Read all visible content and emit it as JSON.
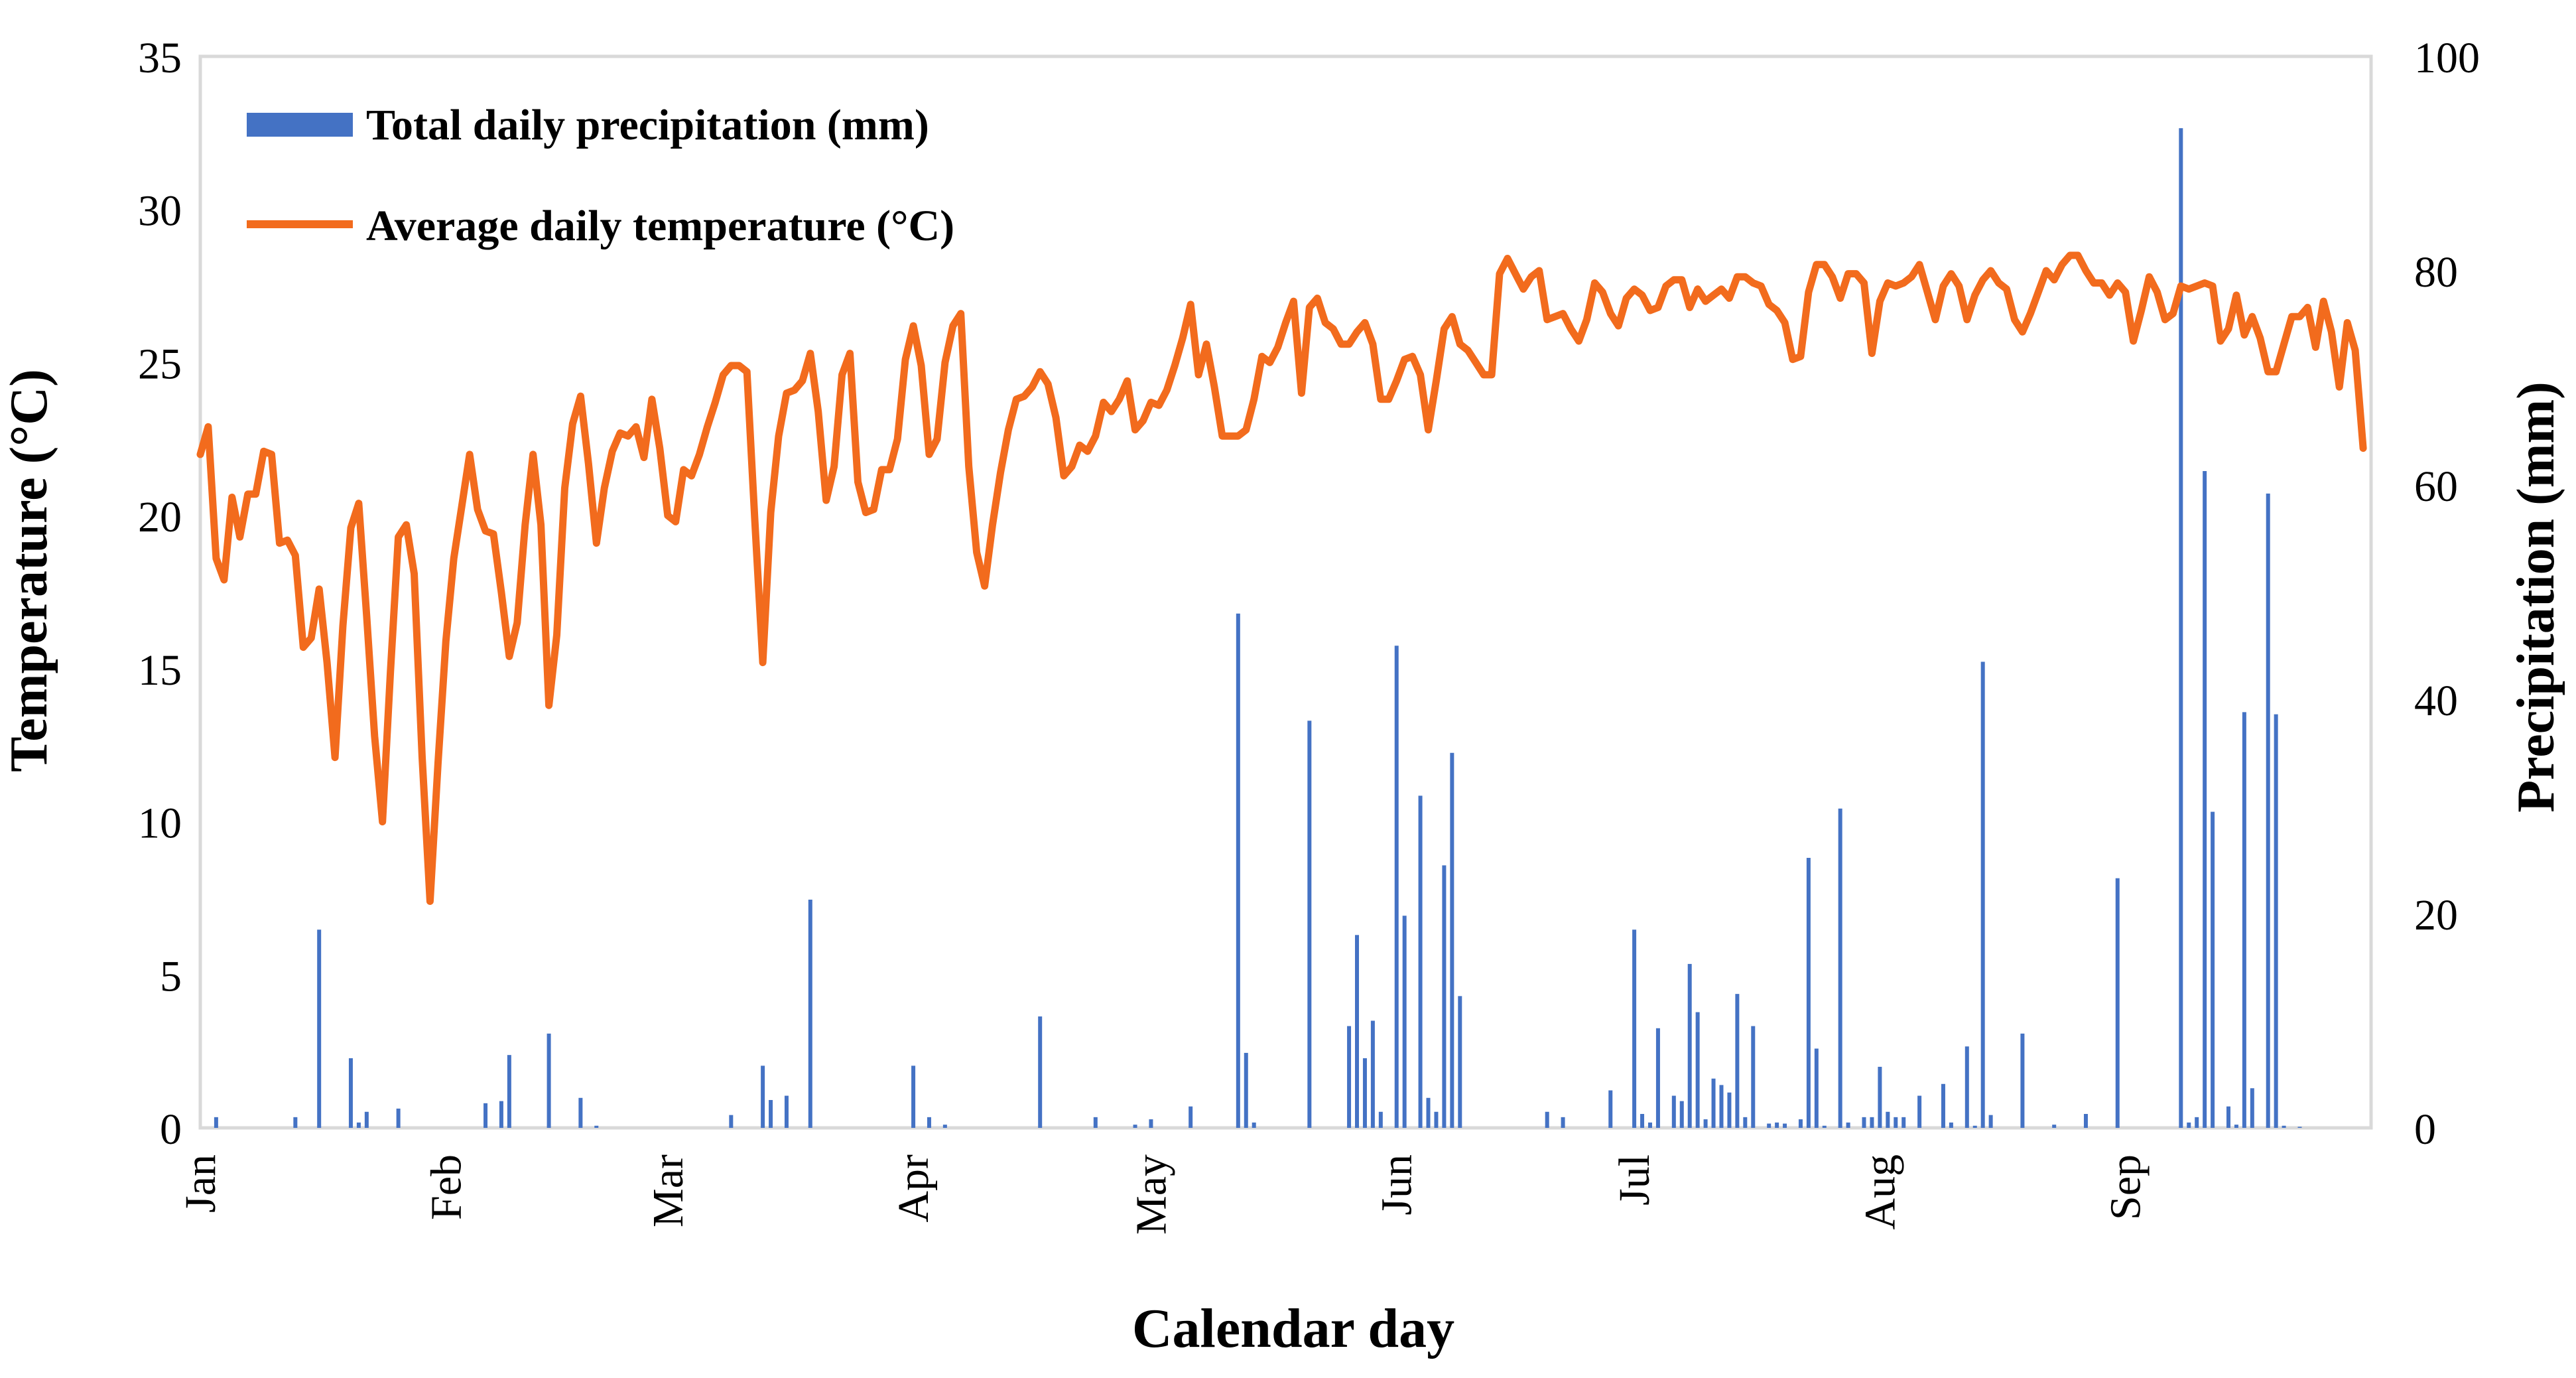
{
  "chart_data": {
    "type": "bar+line",
    "xlabel": "Calendar day",
    "ylabel_left": "Temperature (°C)",
    "ylabel_right": "Precipitation (mm)",
    "ylim_left": [
      0,
      35
    ],
    "yticks_left": [
      0,
      5,
      10,
      15,
      20,
      25,
      30,
      35
    ],
    "ylim_right": [
      0,
      100
    ],
    "yticks_right": [
      0,
      20,
      40,
      60,
      80,
      100
    ],
    "xlim": [
      1,
      275
    ],
    "month_labels": [
      {
        "label": "Jan",
        "day": 1
      },
      {
        "label": "Feb",
        "day": 32
      },
      {
        "label": "Mar",
        "day": 60
      },
      {
        "label": "Apr",
        "day": 91
      },
      {
        "label": "May",
        "day": 121
      },
      {
        "label": "Jun",
        "day": 152
      },
      {
        "label": "Jul",
        "day": 182
      },
      {
        "label": "Aug",
        "day": 213
      },
      {
        "label": "Sep",
        "day": 244
      }
    ],
    "legend": [
      {
        "name": "Total daily precipitation (mm)",
        "color": "#4472C4",
        "kind": "bar"
      },
      {
        "name": "Average daily temperature (°C)",
        "color": "#F26B1D",
        "kind": "line"
      }
    ],
    "precipitation": {
      "name": "Total daily precipitation (mm)",
      "color": "#4472C4",
      "days": [
        3,
        13,
        16,
        20,
        21,
        22,
        26,
        37,
        39,
        40,
        45,
        49,
        51,
        68,
        72,
        73,
        75,
        78,
        91,
        93,
        95,
        107,
        114,
        119,
        121,
        126,
        132,
        133,
        134,
        141,
        146,
        147,
        148,
        149,
        150,
        152,
        153,
        155,
        156,
        157,
        158,
        159,
        160,
        171,
        173,
        179,
        182,
        183,
        184,
        185,
        187,
        188,
        189,
        190,
        191,
        192,
        193,
        194,
        195,
        196,
        197,
        199,
        200,
        201,
        203,
        204,
        205,
        206,
        208,
        209,
        211,
        212,
        213,
        214,
        215,
        216,
        218,
        221,
        222,
        224,
        225,
        226,
        227,
        231,
        235,
        239,
        243,
        251,
        252,
        253,
        254,
        255,
        257,
        258,
        259,
        260,
        262,
        263,
        264,
        266
      ],
      "values": [
        1.0,
        1.0,
        18.5,
        6.5,
        0.5,
        1.5,
        1.8,
        2.3,
        2.5,
        6.8,
        8.8,
        2.8,
        0.2,
        1.2,
        5.8,
        2.6,
        3.0,
        21.3,
        5.8,
        1.0,
        0.3,
        10.4,
        1.0,
        0.3,
        0.8,
        2.0,
        48.0,
        7.0,
        0.5,
        38.0,
        9.5,
        18.0,
        6.5,
        10.0,
        1.5,
        45.0,
        19.8,
        31.0,
        2.8,
        1.5,
        24.5,
        35.0,
        12.3,
        1.5,
        1.0,
        3.5,
        18.5,
        1.3,
        0.5,
        9.3,
        3.0,
        2.5,
        15.3,
        10.8,
        0.8,
        4.6,
        4.0,
        3.3,
        12.5,
        1.0,
        9.5,
        0.4,
        0.5,
        0.4,
        0.8,
        25.2,
        7.4,
        0.2,
        29.8,
        0.5,
        1.0,
        1.0,
        5.7,
        1.5,
        1.0,
        1.0,
        3.0,
        4.1,
        0.5,
        7.6,
        0.2,
        43.5,
        1.2,
        8.8,
        0.3,
        1.3,
        23.3,
        93.3,
        0.5,
        1.0,
        61.3,
        29.5,
        2.0,
        0.3,
        38.8,
        3.7,
        59.2,
        38.6,
        0.2,
        0.1
      ],
      "values_note": "Days/values aligned by index; estimated from the right axis (mm)."
    },
    "temperature": {
      "name": "Average daily temperature (°C)",
      "color": "#F26B1D",
      "start_day": 1,
      "values": [
        22.0,
        22.9,
        18.6,
        17.9,
        20.6,
        19.3,
        20.7,
        20.7,
        22.1,
        22.0,
        19.1,
        19.2,
        18.7,
        15.7,
        16.0,
        17.6,
        15.2,
        12.1,
        16.4,
        19.6,
        20.4,
        16.7,
        12.8,
        10.0,
        14.9,
        19.3,
        19.7,
        18.1,
        12.1,
        7.4,
        11.9,
        15.9,
        18.6,
        20.3,
        22.0,
        20.2,
        19.5,
        19.4,
        17.5,
        15.4,
        16.5,
        19.7,
        22.0,
        19.7,
        13.8,
        16.1,
        20.9,
        23.0,
        23.9,
        21.7,
        19.1,
        20.9,
        22.1,
        22.7,
        22.6,
        22.9,
        21.9,
        23.8,
        22.2,
        20.0,
        19.8,
        21.5,
        21.3,
        22.0,
        22.9,
        23.7,
        24.6,
        24.9,
        24.9,
        24.7,
        19.8,
        15.2,
        20.1,
        22.6,
        24.0,
        24.1,
        24.4,
        25.3,
        23.4,
        20.5,
        21.6,
        24.6,
        25.3,
        21.1,
        20.1,
        20.2,
        21.5,
        21.5,
        22.5,
        25.1,
        26.2,
        24.9,
        22.0,
        22.5,
        25.0,
        26.2,
        26.6,
        21.6,
        18.8,
        17.7,
        19.7,
        21.4,
        22.8,
        23.8,
        23.9,
        24.2,
        24.7,
        24.3,
        23.2,
        21.3,
        21.6,
        22.3,
        22.1,
        22.6,
        23.7,
        23.4,
        23.8,
        24.4,
        22.8,
        23.1,
        23.7,
        23.6,
        24.1,
        24.9,
        25.8,
        26.9,
        24.6,
        25.6,
        24.2,
        22.6,
        22.6,
        22.6,
        22.8,
        23.8,
        25.2,
        25.0,
        25.5,
        26.3,
        27.0,
        24.0,
        26.8,
        27.1,
        26.3,
        26.1,
        25.6,
        25.6,
        26.0,
        26.3,
        25.6,
        23.8,
        23.8,
        24.4,
        25.1,
        25.2,
        24.6,
        22.8,
        24.4,
        26.1,
        26.5,
        25.6,
        25.4,
        25.0,
        24.6,
        24.6,
        27.9,
        28.4,
        27.9,
        27.4,
        27.8,
        28.0,
        26.4,
        26.5,
        26.6,
        26.1,
        25.7,
        26.4,
        27.6,
        27.3,
        26.6,
        26.2,
        27.1,
        27.4,
        27.2,
        26.7,
        26.8,
        27.5,
        27.7,
        27.7,
        26.8,
        27.4,
        27.0,
        27.2,
        27.4,
        27.1,
        27.8,
        27.8,
        27.6,
        27.5,
        26.9,
        26.7,
        26.3,
        25.1,
        25.2,
        27.3,
        28.2,
        28.2,
        27.8,
        27.1,
        27.9,
        27.9,
        27.6,
        25.3,
        27.0,
        27.6,
        27.5,
        27.6,
        27.8,
        28.2,
        27.3,
        26.4,
        27.5,
        27.9,
        27.5,
        26.4,
        27.2,
        27.7,
        28.0,
        27.6,
        27.4,
        26.4,
        26.0,
        26.6,
        27.3,
        28.0,
        27.7,
        28.2,
        28.5,
        28.5,
        28.0,
        27.6,
        27.6,
        27.2,
        27.6,
        27.3,
        25.7,
        26.7,
        27.8,
        27.3,
        26.4,
        26.6,
        27.5,
        27.4,
        27.5,
        27.6,
        27.5,
        25.7,
        26.1,
        27.2,
        25.9,
        26.5,
        25.8,
        24.7,
        24.7,
        25.6,
        26.5,
        26.5,
        26.8,
        25.5,
        27.0,
        26.0,
        24.2,
        26.3,
        25.4,
        22.2
      ]
    },
    "grid": false,
    "legend_position": "top-left"
  }
}
